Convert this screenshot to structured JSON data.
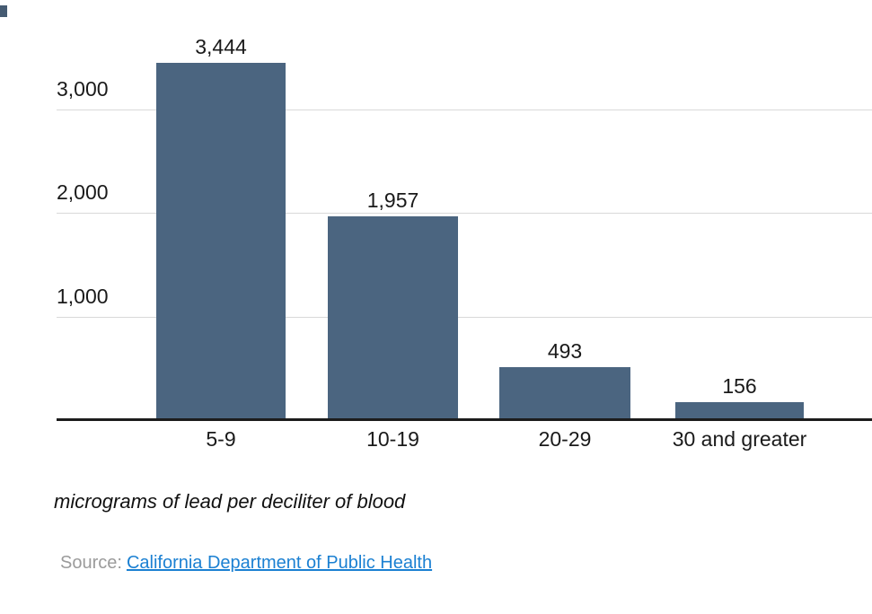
{
  "chart_data": {
    "type": "bar",
    "categories": [
      "5-9",
      "10-19",
      "20-29",
      "30 and greater"
    ],
    "values": [
      3444,
      1957,
      493,
      156
    ],
    "value_labels": [
      "3,444",
      "1,957",
      "493",
      "156"
    ],
    "y_ticks": [
      1000,
      2000,
      3000
    ],
    "y_tick_labels_top_to_bottom": [
      "3,000",
      "2,000",
      "1,000"
    ],
    "ylim": [
      0,
      3500
    ],
    "title": "",
    "xlabel": "micrograms of lead per deciliter of blood",
    "ylabel": "",
    "grid": "horizontal",
    "legend_position": "none",
    "bar_color": "#4b6580",
    "gridline_color": "#d9d9d9",
    "axis_line_color": "#1c1c1c"
  },
  "source": {
    "label": "Source:",
    "link_text": "California Department of Public Health",
    "label_color": "#9b9b9b",
    "link_color": "#1b80d2"
  }
}
